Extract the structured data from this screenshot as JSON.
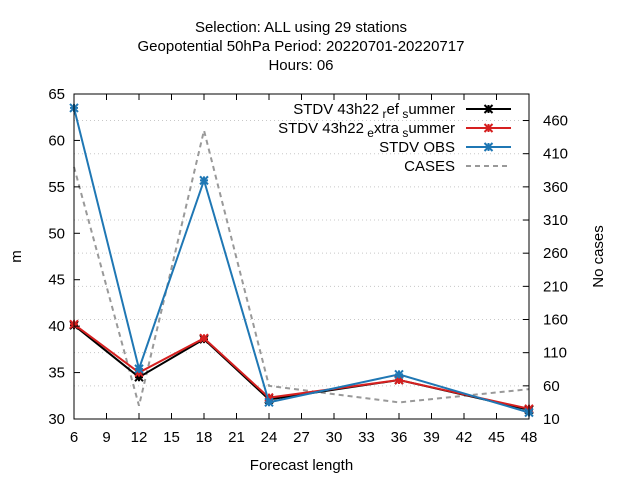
{
  "chart_data": {
    "type": "line",
    "title_lines": [
      "Selection: ALL using    29 stations",
      "Geopotential 50hPa   Period: 20220701-20220717",
      "Hours:  06"
    ],
    "xlabel": "Forecast length",
    "ylabel": "m",
    "y2label": "No cases",
    "xlim": [
      6,
      48
    ],
    "ylim": [
      30,
      65
    ],
    "y2lim": [
      10,
      500
    ],
    "xticks": [
      6,
      9,
      12,
      15,
      18,
      21,
      24,
      27,
      30,
      33,
      36,
      39,
      42,
      45,
      48
    ],
    "yticks": [
      30,
      35,
      40,
      45,
      50,
      55,
      60,
      65
    ],
    "y2ticks": [
      10,
      60,
      110,
      160,
      210,
      260,
      310,
      360,
      410,
      460
    ],
    "legend_position": "top-right",
    "x": [
      6,
      12,
      18,
      24,
      36,
      48
    ],
    "series": [
      {
        "name": "STDV 43h22",
        "name_sub1": "r",
        "name_mid": "ef",
        "name_sub2": "s",
        "name_end": "ummer",
        "color": "#000000",
        "marker": "star",
        "axis": "left",
        "values": [
          40.1,
          34.5,
          38.6,
          32.1,
          34.2,
          31.0
        ]
      },
      {
        "name": "STDV 43h22",
        "name_sub1": "e",
        "name_mid": "xtra",
        "name_sub2": "s",
        "name_end": "ummer",
        "color": "#d62020",
        "marker": "star",
        "axis": "left",
        "values": [
          40.2,
          35.0,
          38.7,
          32.3,
          34.2,
          31.1
        ]
      },
      {
        "name": "STDV OBS",
        "color": "#1f77b4",
        "marker": "star",
        "axis": "left",
        "values": [
          63.5,
          35.4,
          55.7,
          31.8,
          34.8,
          30.7
        ]
      },
      {
        "name": "CASES",
        "color": "#999999",
        "marker": "none",
        "dashed": true,
        "axis": "right",
        "values": [
          390,
          30,
          445,
          60,
          35,
          55
        ]
      }
    ]
  }
}
